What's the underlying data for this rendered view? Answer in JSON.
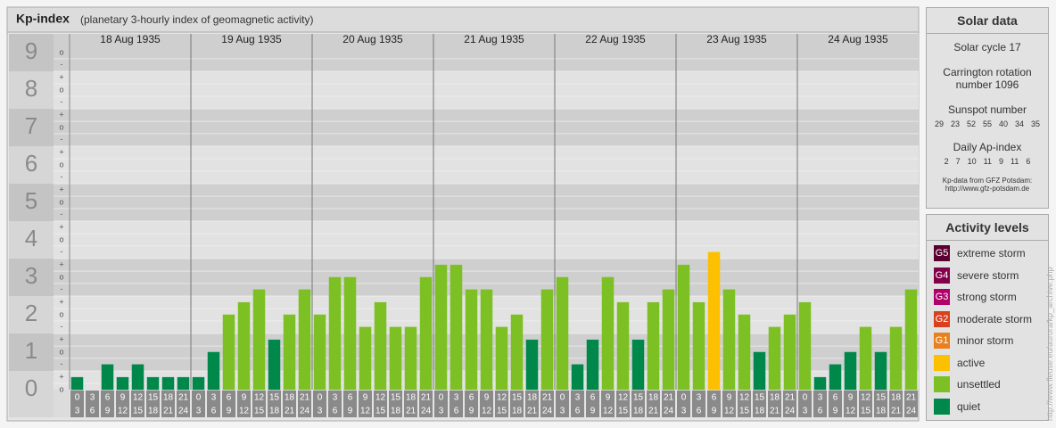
{
  "chart_data": {
    "type": "bar",
    "title": "Kp-index",
    "subtitle": "(planetary 3-hourly index of geomagnetic activity)",
    "days": [
      "18 Aug 1935",
      "19 Aug 1935",
      "20 Aug 1935",
      "21 Aug 1935",
      "22 Aug 1935",
      "23 Aug 1935",
      "24 Aug 1935"
    ],
    "intervals": [
      {
        "start": 0,
        "end": 3
      },
      {
        "start": 3,
        "end": 6
      },
      {
        "start": 6,
        "end": 9
      },
      {
        "start": 9,
        "end": 12
      },
      {
        "start": 12,
        "end": 15
      },
      {
        "start": 15,
        "end": 18
      },
      {
        "start": 18,
        "end": 21
      },
      {
        "start": 21,
        "end": 24
      }
    ],
    "values": [
      0.33,
      0,
      0.67,
      0.33,
      0.67,
      0.33,
      0.33,
      0.33,
      0.33,
      1,
      2,
      2.33,
      2.67,
      1.33,
      2,
      2.67,
      2,
      3,
      3,
      1.67,
      2.33,
      1.67,
      1.67,
      3,
      3.33,
      3.33,
      2.67,
      2.67,
      1.67,
      2,
      1.33,
      2.67,
      3,
      0.67,
      1.33,
      3,
      2.33,
      1.33,
      2.33,
      2.67,
      3.33,
      2.33,
      3.67,
      2.67,
      2,
      1,
      1.67,
      2,
      2.33,
      0.33,
      0.67,
      1,
      1.67,
      1,
      1.67,
      2.67
    ],
    "colors": [
      "#00884a",
      "#00884a",
      "#00884a",
      "#00884a",
      "#00884a",
      "#00884a",
      "#00884a",
      "#00884a",
      "#00884a",
      "#00884a",
      "#7cc024",
      "#7cc024",
      "#7cc024",
      "#00884a",
      "#7cc024",
      "#7cc024",
      "#7cc024",
      "#7cc024",
      "#7cc024",
      "#7cc024",
      "#7cc024",
      "#7cc024",
      "#7cc024",
      "#7cc024",
      "#7cc024",
      "#7cc024",
      "#7cc024",
      "#7cc024",
      "#7cc024",
      "#7cc024",
      "#00884a",
      "#7cc024",
      "#7cc024",
      "#00884a",
      "#00884a",
      "#7cc024",
      "#7cc024",
      "#00884a",
      "#7cc024",
      "#7cc024",
      "#7cc024",
      "#7cc024",
      "#fcc000",
      "#7cc024",
      "#7cc024",
      "#00884a",
      "#7cc024",
      "#7cc024",
      "#7cc024",
      "#00884a",
      "#00884a",
      "#00884a",
      "#7cc024",
      "#00884a",
      "#7cc024",
      "#7cc024"
    ],
    "ylim": [
      0,
      9.5
    ],
    "yticks": [
      0,
      1,
      2,
      3,
      4,
      5,
      6,
      7,
      8,
      9
    ],
    "yminor_ticks": [
      {
        "value": 0,
        "label": "o"
      },
      {
        "value": 0.33,
        "label": "+"
      },
      {
        "value": 0.67,
        "label": "-"
      },
      {
        "value": 1,
        "label": "o"
      },
      {
        "value": 1.33,
        "label": "+"
      },
      {
        "value": 1.67,
        "label": "-"
      },
      {
        "value": 2,
        "label": "o"
      },
      {
        "value": 2.33,
        "label": "+"
      },
      {
        "value": 2.67,
        "label": "-"
      },
      {
        "value": 3,
        "label": "o"
      },
      {
        "value": 3.33,
        "label": "+"
      },
      {
        "value": 3.67,
        "label": "-"
      },
      {
        "value": 4,
        "label": "o"
      },
      {
        "value": 4.33,
        "label": "+"
      },
      {
        "value": 4.67,
        "label": "-"
      },
      {
        "value": 5,
        "label": "o"
      },
      {
        "value": 5.33,
        "label": "+"
      },
      {
        "value": 5.67,
        "label": "-"
      },
      {
        "value": 6,
        "label": "o"
      },
      {
        "value": 6.33,
        "label": "+"
      },
      {
        "value": 6.67,
        "label": "-"
      },
      {
        "value": 7,
        "label": "o"
      },
      {
        "value": 7.33,
        "label": "+"
      },
      {
        "value": 7.67,
        "label": "-"
      },
      {
        "value": 8,
        "label": "o"
      },
      {
        "value": 8.33,
        "label": "+"
      },
      {
        "value": 8.67,
        "label": "-"
      },
      {
        "value": 9,
        "label": "o"
      }
    ],
    "grid": true
  },
  "solar_data": {
    "title": "Solar data",
    "cycle": "Solar cycle 17",
    "carrington": [
      "Carrington rotation",
      "number 1096"
    ],
    "sunspot_title": "Sunspot number",
    "sunspot_numbers": [
      29,
      23,
      52,
      55,
      40,
      34,
      35
    ],
    "ap_title": "Daily Ap-index",
    "ap_values": [
      2,
      7,
      10,
      11,
      9,
      11,
      6
    ],
    "source": [
      "Kp-data from GFZ Potsdam:",
      "http://www.gfz-potsdam.de"
    ]
  },
  "activity_levels": {
    "title": "Activity levels",
    "items": [
      {
        "badge": "G5",
        "label": "extreme storm",
        "color": "#5a0030"
      },
      {
        "badge": "G4",
        "label": "severe storm",
        "color": "#82004a"
      },
      {
        "badge": "G3",
        "label": "strong storm",
        "color": "#b0006a"
      },
      {
        "badge": "G2",
        "label": "moderate storm",
        "color": "#d9401e"
      },
      {
        "badge": "G1",
        "label": "minor storm",
        "color": "#e8801e"
      },
      {
        "label": "active",
        "color": "#fcc000"
      },
      {
        "label": "unsettled",
        "color": "#7cc024"
      },
      {
        "label": "quiet",
        "color": "#00884a"
      }
    ]
  },
  "watermark": "http://www.fleuse.eu/aurora/kp_archive.php"
}
